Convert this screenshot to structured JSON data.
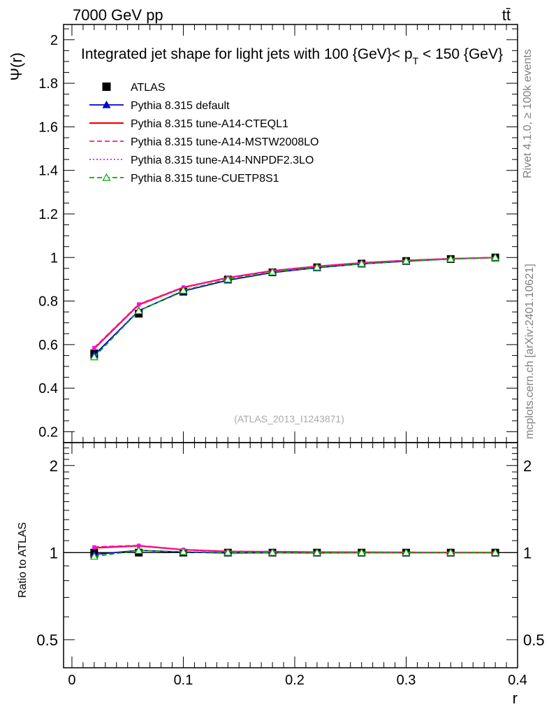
{
  "header": {
    "process_left": "7000 GeV pp",
    "process_right": "tt̄"
  },
  "side_labels": {
    "rivet": "Rivet 4.1.0, ≥ 100k events",
    "mcplots": "mcplots.cern.ch [arXiv:2401.10621]"
  },
  "analysis_id": "(ATLAS_2013_I1243871)",
  "chart_data": [
    {
      "type": "line",
      "title": "Integrated jet shape for light jets with 100 {GeV}< p_T < 150 {GeV}",
      "title_parts": {
        "main": "Integrated jet shape for light jets with 100 {GeV}< p",
        "sub": "T",
        "tail": " < 150 {GeV}"
      },
      "xlabel": "r",
      "ylabel": "Ψ(r)",
      "xlim": [
        -0.0075,
        0.4
      ],
      "ylim": [
        0.15,
        2.07
      ],
      "yticks": [
        0.2,
        0.4,
        0.6,
        0.8,
        1,
        1.2,
        1.4,
        1.6,
        1.8,
        2
      ],
      "ytick_labels": [
        "0.2",
        "0.4",
        "0.6",
        "0.8",
        "1",
        "1.2",
        "1.4",
        "1.6",
        "1.8",
        "2"
      ],
      "x": [
        0.02,
        0.06,
        0.1,
        0.14,
        0.18,
        0.22,
        0.26,
        0.3,
        0.34,
        0.38
      ],
      "series": [
        {
          "name": "ATLAS",
          "style": "data",
          "color": "#000000",
          "values": [
            0.56,
            0.742,
            0.843,
            0.899,
            0.932,
            0.955,
            0.972,
            0.984,
            0.993,
            1.0
          ]
        },
        {
          "name": "Pythia 8.315 default",
          "style": "solid-triangle",
          "color": "#0000cc",
          "values": [
            0.552,
            0.756,
            0.846,
            0.896,
            0.931,
            0.953,
            0.971,
            0.983,
            0.993,
            1.0
          ]
        },
        {
          "name": "Pythia 8.315 tune-A14-CTEQL1",
          "style": "solid",
          "color": "#ff0000",
          "values": [
            0.582,
            0.783,
            0.862,
            0.907,
            0.939,
            0.959,
            0.975,
            0.986,
            0.994,
            1.0
          ]
        },
        {
          "name": "Pythia 8.315 tune-A14-MSTW2008LO",
          "style": "dashed",
          "color": "#ff1493",
          "values": [
            0.586,
            0.786,
            0.864,
            0.908,
            0.94,
            0.96,
            0.976,
            0.987,
            0.995,
            1.0
          ]
        },
        {
          "name": "Pythia 8.315 tune-A14-NNPDF2.3LO",
          "style": "dotted",
          "color": "#ff00ff",
          "values": [
            0.584,
            0.785,
            0.863,
            0.907,
            0.939,
            0.959,
            0.975,
            0.986,
            0.994,
            1.0
          ]
        },
        {
          "name": "Pythia 8.315 tune-CUETP8S1",
          "style": "dashed-open-triangle",
          "color": "#00aa00",
          "values": [
            0.543,
            0.755,
            0.849,
            0.9,
            0.933,
            0.955,
            0.972,
            0.984,
            0.993,
            1.0
          ]
        }
      ]
    },
    {
      "type": "line",
      "title": "",
      "xlabel": "r",
      "ylabel": "Ratio to ATLAS",
      "xlim": [
        -0.0075,
        0.4
      ],
      "ylim": [
        0.4,
        2.4
      ],
      "log_y": true,
      "yticks": [
        0.5,
        1,
        2
      ],
      "ytick_labels": [
        "0.5",
        "1",
        "2"
      ],
      "xticks": [
        0,
        0.1,
        0.2,
        0.3,
        0.4
      ],
      "xtick_labels": [
        "0",
        "0.1",
        "0.2",
        "0.3",
        "0.4"
      ],
      "x": [
        0.02,
        0.06,
        0.1,
        0.14,
        0.18,
        0.22,
        0.26,
        0.3,
        0.34,
        0.38
      ],
      "series": [
        {
          "name": "Pythia 8.315 default",
          "color": "#0000cc",
          "values": [
            0.985,
            1.018,
            1.004,
            0.997,
            0.999,
            0.998,
            0.999,
            0.999,
            1.0,
            1.0
          ]
        },
        {
          "name": "Pythia 8.315 tune-A14-CTEQL1",
          "color": "#ff0000",
          "values": [
            1.039,
            1.055,
            1.023,
            1.009,
            1.007,
            1.004,
            1.003,
            1.002,
            1.001,
            1.0
          ]
        },
        {
          "name": "Pythia 8.315 tune-A14-MSTW2008LO",
          "color": "#ff1493",
          "values": [
            1.046,
            1.059,
            1.025,
            1.01,
            1.009,
            1.005,
            1.004,
            1.003,
            1.002,
            1.0
          ]
        },
        {
          "name": "Pythia 8.315 tune-A14-NNPDF2.3LO",
          "color": "#ff00ff",
          "values": [
            1.043,
            1.058,
            1.024,
            1.009,
            1.007,
            1.004,
            1.003,
            1.002,
            1.001,
            1.0
          ]
        },
        {
          "name": "Pythia 8.315 tune-CUETP8S1",
          "color": "#00aa00",
          "values": [
            0.97,
            1.017,
            1.007,
            1.001,
            1.001,
            1.0,
            1.0,
            1.0,
            1.0,
            1.0
          ]
        }
      ]
    }
  ]
}
